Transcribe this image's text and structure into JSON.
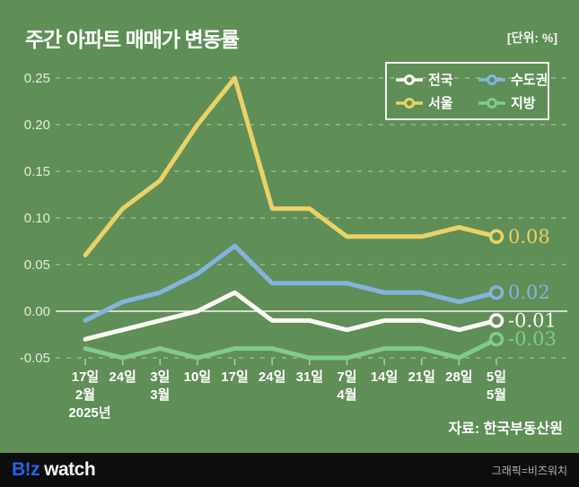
{
  "colors": {
    "background": "#5f8e57",
    "grid": "rgba(255,255,255,0.38)",
    "zero_line": "rgba(255,255,255,0.95)",
    "tick": "rgba(255,255,255,0.55)",
    "axis_text": "#e3ecdd",
    "footer_bg": "#0d0d0d",
    "brand_blue": "#2563e8",
    "credit_gray": "#b5b5b5"
  },
  "header": {
    "title": "주간 아파트 매매가 변동률",
    "unit": "[단위: %]"
  },
  "chart_data": {
    "type": "line",
    "title": "주간 아파트 매매가 변동률",
    "unit_label": "[단위: %]",
    "legend_position": "top-right",
    "grid": "horizontal dashed, solid line at 0.00",
    "x_tick_labels": [
      "17일",
      "24일",
      "3일",
      "10일",
      "17일",
      "24일",
      "31일",
      "7일",
      "14일",
      "21일",
      "28일",
      "5일"
    ],
    "x_month_labels": [
      {
        "index": 0,
        "label": "2월"
      },
      {
        "index": 2,
        "label": "3월"
      },
      {
        "index": 7,
        "label": "4월"
      },
      {
        "index": 11,
        "label": "5월"
      }
    ],
    "x_year_label": {
      "index": 0,
      "label": "2025년"
    },
    "y_ticks": [
      0.25,
      0.2,
      0.15,
      0.1,
      0.05,
      0.0,
      -0.05
    ],
    "y_tick_labels": [
      "0.25",
      "0.20",
      "0.15",
      "0.10",
      "0.05",
      "0.00",
      "-0.05"
    ],
    "ylim": [
      -0.05,
      0.25
    ],
    "series": [
      {
        "id": "national",
        "name": "전국",
        "color": "#fbfaf2",
        "values": [
          -0.03,
          -0.02,
          -0.01,
          0.0,
          0.02,
          -0.01,
          -0.01,
          -0.02,
          -0.01,
          -0.01,
          -0.02,
          -0.01
        ],
        "end_label": "-0.01"
      },
      {
        "id": "metro",
        "name": "수도권",
        "color": "#84b4dd",
        "values": [
          -0.01,
          0.01,
          0.02,
          0.04,
          0.07,
          0.03,
          0.03,
          0.03,
          0.02,
          0.02,
          0.01,
          0.02
        ],
        "end_label": "0.02"
      },
      {
        "id": "seoul",
        "name": "서울",
        "color": "#e9d268",
        "values": [
          0.06,
          0.11,
          0.14,
          0.2,
          0.25,
          0.11,
          0.11,
          0.08,
          0.08,
          0.08,
          0.09,
          0.08
        ],
        "end_label": "0.08"
      },
      {
        "id": "provinces",
        "name": "지방",
        "color": "#81ca90",
        "values": [
          -0.04,
          -0.05,
          -0.04,
          -0.05,
          -0.04,
          -0.04,
          -0.05,
          -0.05,
          -0.04,
          -0.04,
          -0.05,
          -0.03
        ],
        "end_label": "-0.03"
      }
    ],
    "source": "자료: 한국부동산원"
  },
  "footer": {
    "brand_blue_text": "B!z",
    "brand_white_text": "watch",
    "credit": "그래픽=비즈워치"
  }
}
